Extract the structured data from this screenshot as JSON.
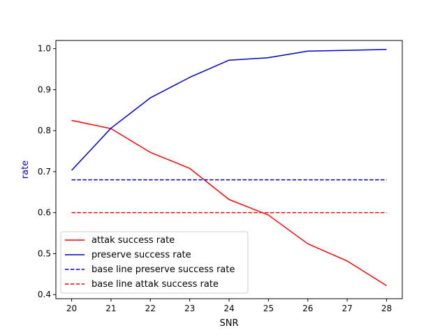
{
  "chart_data": {
    "type": "line",
    "title": "",
    "xlabel": "SNR",
    "ylabel": "rate",
    "xlim": [
      19.6,
      28.4
    ],
    "ylim": [
      0.39,
      1.02
    ],
    "x": [
      20,
      21,
      22,
      23,
      24,
      25,
      26,
      27,
      28
    ],
    "xticks": [
      20,
      21,
      22,
      23,
      24,
      25,
      26,
      27,
      28
    ],
    "yticks": [
      0.4,
      0.5,
      0.6,
      0.7,
      0.8,
      0.9,
      1.0
    ],
    "ytick_labels": [
      "0.4",
      "0.5",
      "0.6",
      "0.7",
      "0.8",
      "0.9",
      "1.0"
    ],
    "grid": false,
    "legend_position": "lower-left",
    "colors": {
      "red": "#ff0000",
      "blue": "#0000cc",
      "ylabel": "#0000cc"
    },
    "series": [
      {
        "name": "attak success rate",
        "color": "#ff0000",
        "style": "solid",
        "values": [
          0.825,
          0.805,
          0.747,
          0.708,
          0.632,
          0.594,
          0.524,
          0.482,
          0.422
        ]
      },
      {
        "name": "preserve success rate",
        "color": "#0000cc",
        "style": "solid",
        "values": [
          0.703,
          0.806,
          0.88,
          0.93,
          0.972,
          0.978,
          0.994,
          0.996,
          0.998
        ]
      },
      {
        "name": "base line preserve success rate",
        "color": "#0000cc",
        "style": "dashed",
        "values": [
          0.68,
          0.68,
          0.68,
          0.68,
          0.68,
          0.68,
          0.68,
          0.68,
          0.68
        ]
      },
      {
        "name": "base line attak success rate",
        "color": "#ff0000",
        "style": "dashed",
        "values": [
          0.6,
          0.6,
          0.6,
          0.6,
          0.6,
          0.6,
          0.6,
          0.6,
          0.6
        ]
      }
    ]
  }
}
